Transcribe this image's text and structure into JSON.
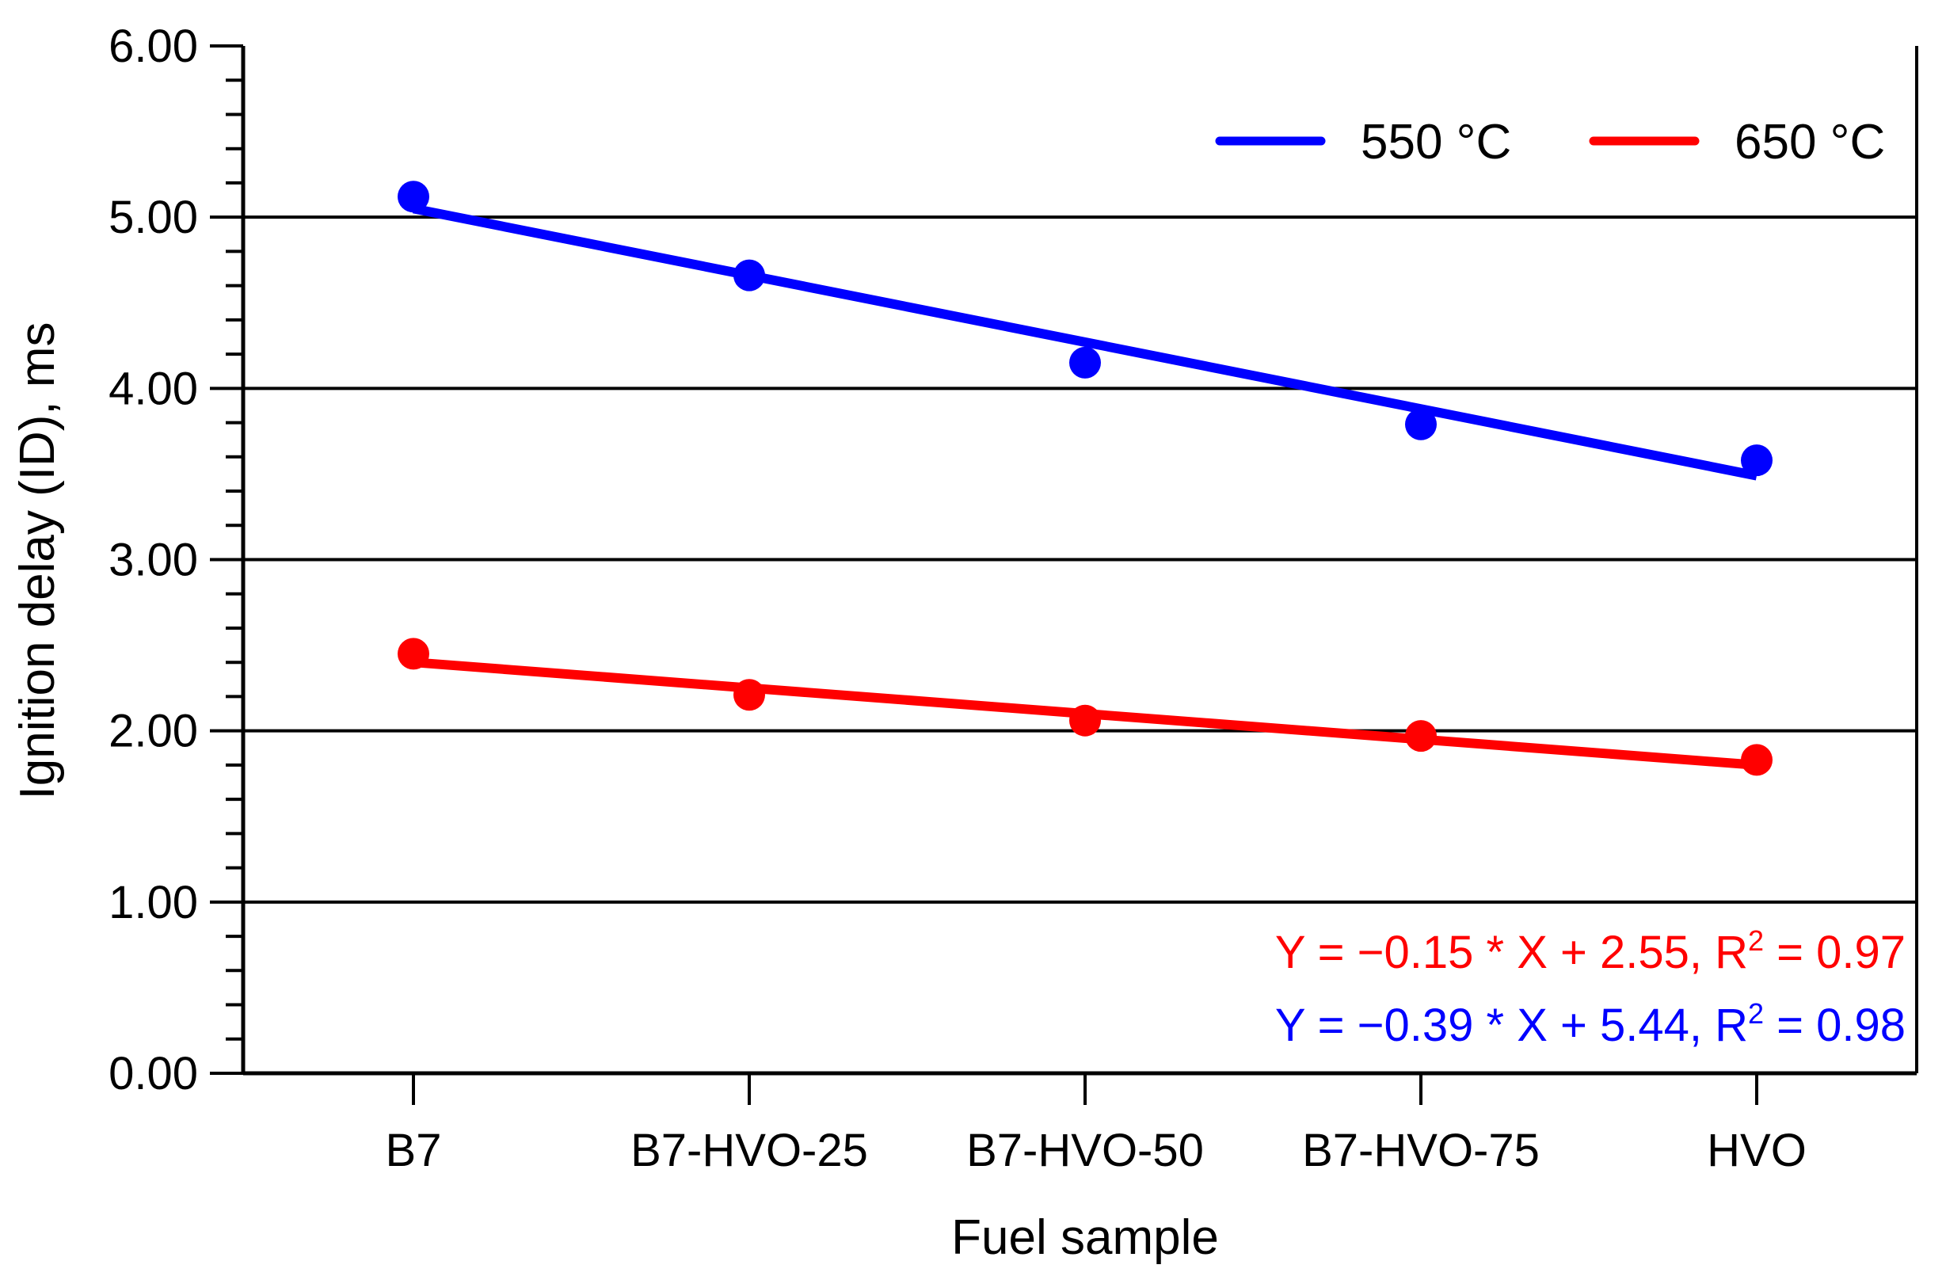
{
  "chart_data": {
    "type": "line",
    "xlabel": "Fuel sample",
    "ylabel": "Ignition delay (ID), ms",
    "categories": [
      "B7",
      "B7-HVO-25",
      "B7-HVO-50",
      "B7-HVO-75",
      "HVO"
    ],
    "ylim": [
      0,
      6
    ],
    "yticks": [
      "0.00",
      "1.00",
      "2.00",
      "3.00",
      "4.00",
      "5.00",
      "6.00"
    ],
    "grid": "horizontal at 1.00 to 5.00",
    "legend_position": "top-right",
    "series": [
      {
        "name": "550 °C",
        "color": "#0000ff",
        "values": [
          5.12,
          4.66,
          4.15,
          3.79,
          3.58
        ],
        "fit": {
          "slope": -0.39,
          "intercept": 5.44,
          "r2": 0.98
        }
      },
      {
        "name": "650 °C",
        "color": "#ff0000",
        "values": [
          2.45,
          2.21,
          2.06,
          1.97,
          1.83
        ],
        "fit": {
          "slope": -0.15,
          "intercept": 2.55,
          "r2": 0.97
        }
      }
    ],
    "annotations": [
      {
        "color": "#ff0000",
        "prefix": "Y = −0.15 * X + 2.55, R",
        "sup": "2",
        "suffix": " = 0.97"
      },
      {
        "color": "#0000ff",
        "prefix": "Y = −0.39 * X + 5.44, R",
        "sup": "2",
        "suffix": " = 0.98"
      }
    ]
  }
}
